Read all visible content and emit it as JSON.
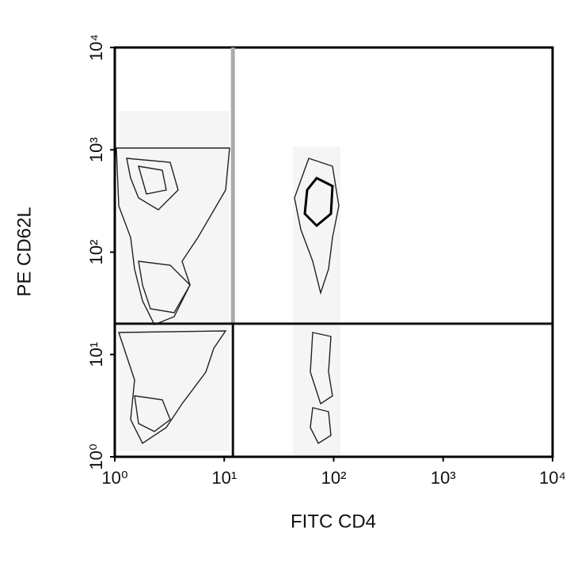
{
  "chart_data": {
    "type": "contour",
    "x_label": "FITC CD4",
    "y_label": "PE CD62L",
    "log_x": true,
    "log_y": true,
    "xlim": [
      1,
      10000
    ],
    "ylim": [
      1,
      10000
    ],
    "xticks": [
      {
        "value": 1,
        "label": "10⁰"
      },
      {
        "value": 10,
        "label": "10¹"
      },
      {
        "value": 100,
        "label": "10²"
      },
      {
        "value": 1000,
        "label": "10³"
      },
      {
        "value": 10000,
        "label": "10⁴"
      }
    ],
    "yticks": [
      {
        "value": 1,
        "label": "10⁰"
      },
      {
        "value": 10,
        "label": "10¹"
      },
      {
        "value": 100,
        "label": "10²"
      },
      {
        "value": 1000,
        "label": "10³"
      },
      {
        "value": 10000,
        "label": "10⁴"
      }
    ],
    "quadrant_x": 12,
    "quadrant_y": 20
  }
}
